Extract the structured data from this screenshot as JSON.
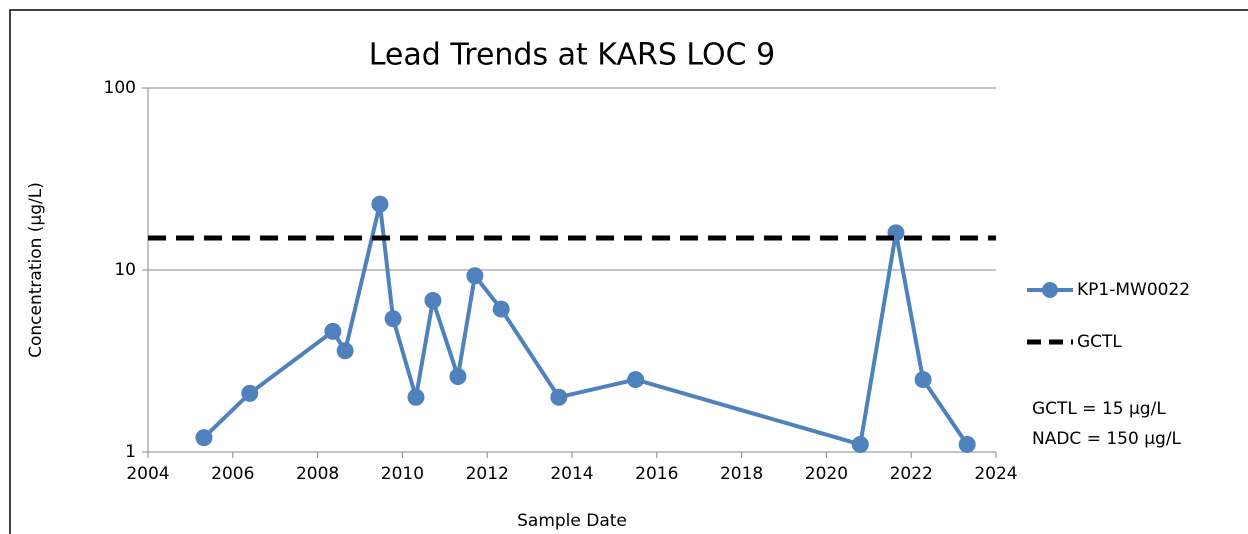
{
  "chart_data": {
    "type": "line",
    "title": "Lead Trends at KARS LOC 9",
    "xlabel": "Sample Date",
    "ylabel": "Concentration (µg/L)",
    "xlim": [
      2004,
      2024
    ],
    "xticks": [
      2004,
      2006,
      2008,
      2010,
      2012,
      2014,
      2016,
      2018,
      2020,
      2022,
      2024
    ],
    "ylim": [
      1,
      100
    ],
    "yticks": [
      1,
      10,
      100
    ],
    "yscale": "log",
    "grid": true,
    "legend": "right",
    "series": [
      {
        "name": "KP1-MW0022",
        "color": "#4f81bd",
        "marker": true,
        "dashed": false,
        "x": [
          2005.32,
          2006.4,
          2008.36,
          2008.65,
          2009.47,
          2009.78,
          2010.32,
          2010.72,
          2011.31,
          2011.71,
          2012.33,
          2013.69,
          2015.5,
          2020.8,
          2021.64,
          2022.28,
          2023.32
        ],
        "values": [
          1.2,
          2.1,
          4.6,
          3.6,
          23,
          5.4,
          2.0,
          6.8,
          2.6,
          9.3,
          6.1,
          2.0,
          2.5,
          1.1,
          16,
          2.5,
          1.1
        ]
      },
      {
        "name": "GCTL",
        "color": "#000000",
        "marker": false,
        "dashed": true,
        "x": [
          2004,
          2024
        ],
        "values": [
          15,
          15
        ]
      }
    ],
    "annotations": [
      "GCTL = 15 µg/L",
      "NADC = 150 µg/L"
    ]
  }
}
